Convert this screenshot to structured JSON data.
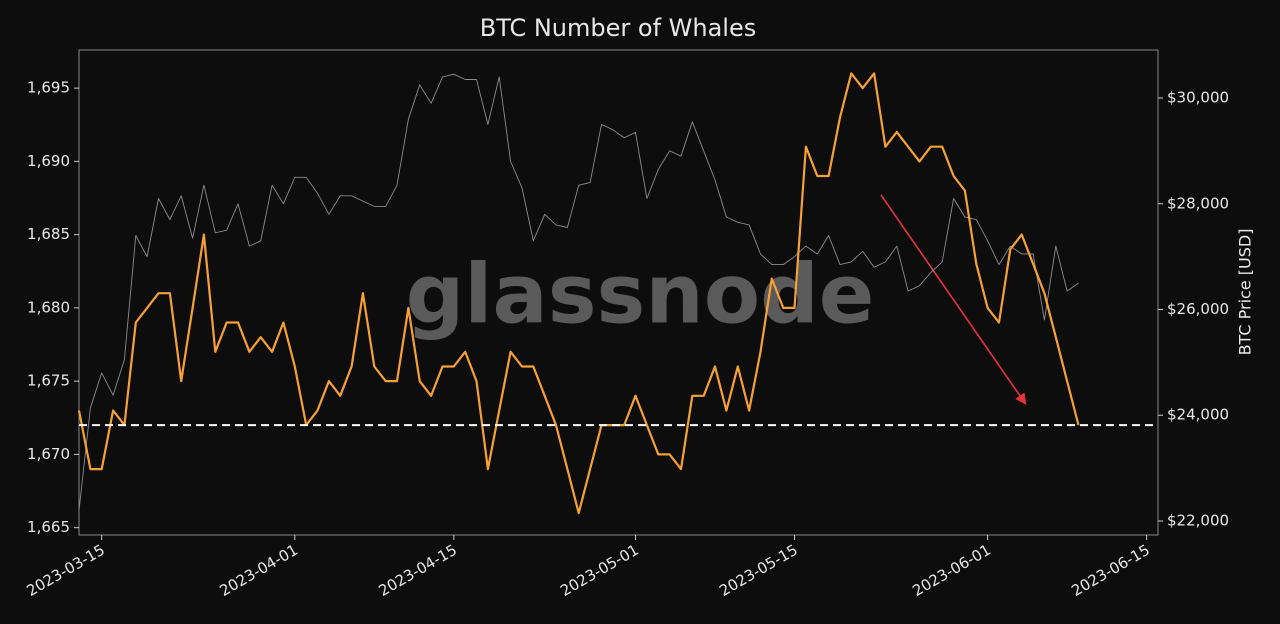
{
  "chart_data": {
    "type": "line",
    "title": "BTC Number of Whales",
    "y2label": "BTC Price [USD]",
    "watermark": "glassnode",
    "x": [
      "2023-03-13",
      "2023-03-14",
      "2023-03-15",
      "2023-03-16",
      "2023-03-17",
      "2023-03-18",
      "2023-03-19",
      "2023-03-20",
      "2023-03-21",
      "2023-03-22",
      "2023-03-23",
      "2023-03-24",
      "2023-03-25",
      "2023-03-26",
      "2023-03-27",
      "2023-03-28",
      "2023-03-29",
      "2023-03-30",
      "2023-03-31",
      "2023-04-01",
      "2023-04-02",
      "2023-04-03",
      "2023-04-04",
      "2023-04-05",
      "2023-04-06",
      "2023-04-07",
      "2023-04-08",
      "2023-04-09",
      "2023-04-10",
      "2023-04-11",
      "2023-04-12",
      "2023-04-13",
      "2023-04-14",
      "2023-04-15",
      "2023-04-16",
      "2023-04-17",
      "2023-04-18",
      "2023-04-19",
      "2023-04-20",
      "2023-04-21",
      "2023-04-22",
      "2023-04-23",
      "2023-04-24",
      "2023-04-25",
      "2023-04-26",
      "2023-04-27",
      "2023-04-28",
      "2023-04-29",
      "2023-04-30",
      "2023-05-01",
      "2023-05-02",
      "2023-05-03",
      "2023-05-04",
      "2023-05-05",
      "2023-05-06",
      "2023-05-07",
      "2023-05-08",
      "2023-05-09",
      "2023-05-10",
      "2023-05-11",
      "2023-05-12",
      "2023-05-13",
      "2023-05-14",
      "2023-05-15",
      "2023-05-16",
      "2023-05-17",
      "2023-05-18",
      "2023-05-19",
      "2023-05-20",
      "2023-05-21",
      "2023-05-22",
      "2023-05-23",
      "2023-05-24",
      "2023-05-25",
      "2023-05-26",
      "2023-05-27",
      "2023-05-28",
      "2023-05-29",
      "2023-05-30",
      "2023-05-31",
      "2023-06-01",
      "2023-06-02",
      "2023-06-03",
      "2023-06-04",
      "2023-06-05",
      "2023-06-06",
      "2023-06-07",
      "2023-06-08",
      "2023-06-09"
    ],
    "series": [
      {
        "name": "Number of Whales",
        "color": "#f7a035",
        "axis": "y",
        "values": [
          1673,
          1669,
          1669,
          1673,
          1672,
          1679,
          1680,
          1681,
          1681,
          1675,
          1680,
          1685,
          1677,
          1679,
          1679,
          1677,
          1678,
          1677,
          1679,
          1676,
          1672,
          1673,
          1675,
          1674,
          1676,
          1681,
          1676,
          1675,
          1675,
          1680,
          1675,
          1674,
          1676,
          1676,
          1677,
          1675,
          1669,
          1673,
          1677,
          1676,
          1676,
          1674,
          1672,
          1669,
          1666,
          1669,
          1672,
          1672,
          1672,
          1674,
          1672,
          1670,
          1670,
          1669,
          1674,
          1674,
          1676,
          1673,
          1676,
          1673,
          1677,
          1682,
          1680,
          1680,
          1691,
          1689,
          1689,
          1693,
          1696,
          1695,
          1696,
          1691,
          1692,
          1691,
          1690,
          1691,
          1691,
          1689,
          1688,
          1683,
          1680,
          1679,
          1684,
          1685,
          1683,
          1681,
          1678,
          1675,
          1672
        ]
      },
      {
        "name": "BTC Price",
        "color": "#8c8c8c",
        "axis": "y2",
        "values": [
          22200,
          24140,
          24800,
          24380,
          25050,
          27400,
          27000,
          28100,
          27700,
          28150,
          27350,
          28350,
          27450,
          27500,
          28000,
          27200,
          27300,
          28350,
          28000,
          28500,
          28500,
          28200,
          27800,
          28150,
          28150,
          28050,
          27950,
          27950,
          28350,
          29600,
          30250,
          29900,
          30400,
          30450,
          30350,
          30350,
          29500,
          30400,
          28800,
          28300,
          27300,
          27800,
          27600,
          27550,
          28350,
          28400,
          29500,
          29400,
          29250,
          29350,
          28100,
          28650,
          29000,
          28900,
          29550,
          29000,
          28450,
          27750,
          27650,
          27600,
          27050,
          26850,
          26850,
          27000,
          27200,
          27050,
          27400,
          26850,
          26900,
          27100,
          26800,
          26900,
          27200,
          26350,
          26450,
          26700,
          26900,
          28100,
          27750,
          27700,
          27300,
          26850,
          27200,
          27050,
          27050,
          25800,
          27200,
          26350,
          26500
        ]
      }
    ],
    "reference_line": {
      "value": 1672,
      "color": "#ffffff"
    },
    "xlim": [
      "2023-03-13",
      "2023-06-16"
    ],
    "xticks": [
      "2023-03-15",
      "2023-04-01",
      "2023-04-15",
      "2023-05-01",
      "2023-05-15",
      "2023-06-01",
      "2023-06-15"
    ],
    "ylim": [
      1664.5,
      1697.6
    ],
    "yticks": [
      {
        "value": 1665,
        "label": "1,665"
      },
      {
        "value": 1670,
        "label": "1,670"
      },
      {
        "value": 1675,
        "label": "1,675"
      },
      {
        "value": 1680,
        "label": "1,680"
      },
      {
        "value": 1685,
        "label": "1,685"
      },
      {
        "value": 1690,
        "label": "1,690"
      },
      {
        "value": 1695,
        "label": "1,695"
      }
    ],
    "y2lim": [
      21735,
      30908
    ],
    "y2ticks": [
      {
        "value": 22000,
        "label": "$22,000"
      },
      {
        "value": 24000,
        "label": "$24,000"
      },
      {
        "value": 26000,
        "label": "$26,000"
      },
      {
        "value": 28000,
        "label": "$28,000"
      },
      {
        "value": 30000,
        "label": "$30,000"
      }
    ]
  }
}
